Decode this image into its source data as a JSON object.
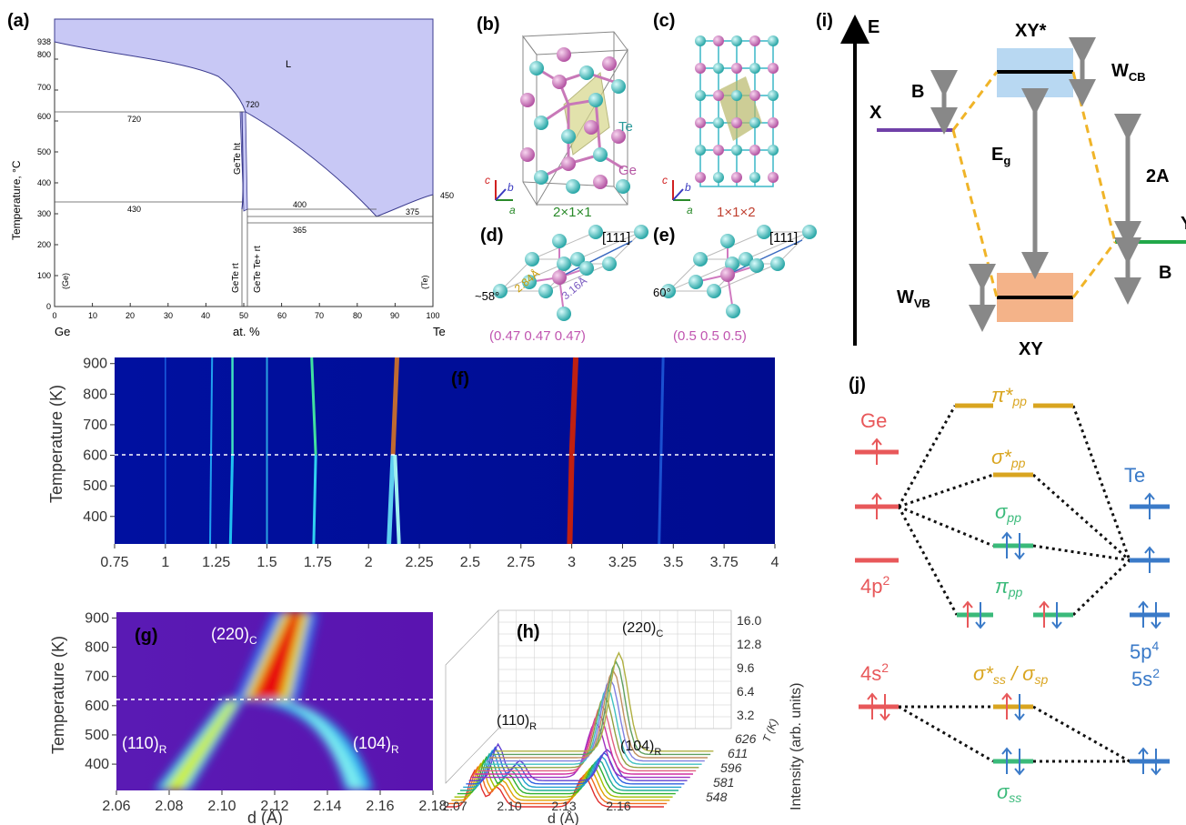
{
  "panels": {
    "a": "(a)",
    "b": "(b)",
    "c": "(c)",
    "d": "(d)",
    "e": "(e)",
    "f": "(f)",
    "g": "(g)",
    "h": "(h)",
    "i": "(i)",
    "j": "(j)"
  },
  "phase_diagram": {
    "ylabel": "Temperature, °C",
    "yticks": [
      "0",
      "100",
      "200",
      "300",
      "400",
      "500",
      "600",
      "700",
      "800"
    ],
    "xticks": [
      "0",
      "10",
      "20",
      "30",
      "40",
      "50",
      "60",
      "70",
      "80",
      "90",
      "100"
    ],
    "x_left": "Ge",
    "x_mid": "at. %",
    "x_right": "Te",
    "v938": "938",
    "v720a": "720",
    "v720b": "720",
    "v430": "430",
    "v400": "400",
    "v375": "375",
    "v365": "365",
    "v450": "450",
    "region_L": "L",
    "ge_side": "(Ge)",
    "te_side": "(Te)",
    "gete_ht": "GeTe ht",
    "gete_rt": "GeTe rt",
    "gete_te_rt": "GeTe Te+ rt"
  },
  "crystal": {
    "te": "Te",
    "ge": "Ge",
    "axis_a": "a",
    "axis_b": "b",
    "axis_c": "c",
    "cell_b": "2×1×1",
    "cell_c": "1×1×2",
    "dir": "[111]",
    "bond1": "2.84Å",
    "bond2": "3.16Å",
    "angle_d": "~58°",
    "angle_e": "60°",
    "coord_d": "(0.47 0.47 0.47)",
    "coord_e": "(0.5 0.5 0.5)"
  },
  "energy_diagram": {
    "E": "E",
    "X": "X",
    "Y": "Y",
    "XYs": "XY*",
    "XY": "XY",
    "B1": "B",
    "B2": "B",
    "Eg": "E",
    "Eg_sub": "g",
    "WCB": "W",
    "WCB_sub": "CB",
    "WVB": "W",
    "WVB_sub": "VB",
    "twoA": "2A"
  },
  "mo": {
    "ge": "Ge",
    "te": "Te",
    "pi_star": "π*",
    "pi_star_sub": "pp",
    "sigma_star": "σ*",
    "sigma_star_sub": "pp",
    "sigma_pp": "σ",
    "sigma_pp_sub": "pp",
    "pi_pp": "π",
    "pi_pp_sub": "pp",
    "ge4p": "4p",
    "ge4p_sup": "2",
    "te5p": "5p",
    "te5p_sup": "4",
    "ge4s": "4s",
    "ge4s_sup": "2",
    "te5s": "5s",
    "te5s_sup": "2",
    "ss_star": "σ*",
    "ss_star_sub": "ss",
    "ss_sep": " / σ",
    "sp_sub": "sp",
    "sigma_ss": "σ",
    "sigma_ss_sub": "ss"
  },
  "heatmap_f": {
    "ylabel": "Temperature (K)",
    "yticks": [
      "400",
      "500",
      "600",
      "700",
      "800",
      "900"
    ],
    "xticks": [
      "0.75",
      "1",
      "1.25",
      "1.5",
      "1.75",
      "2",
      "2.25",
      "2.5",
      "2.75",
      "3",
      "3.25",
      "3.5",
      "3.75",
      "4"
    ]
  },
  "heatmap_g": {
    "ylabel": "Temperature (K)",
    "xlabel": "d (Å)",
    "yticks": [
      "400",
      "500",
      "600",
      "700",
      "800",
      "900"
    ],
    "xticks": [
      "2.06",
      "2.08",
      "2.10",
      "2.12",
      "2.14",
      "2.16",
      "2.18"
    ],
    "p220": "(220)",
    "p220_sub": "C",
    "p110": "(110)",
    "p110_sub": "R",
    "p104": "(104)",
    "p104_sub": "R"
  },
  "waterfall_h": {
    "zlabel": "Intensity (arb. units)",
    "xlabel": "d (Å)",
    "zticks": [
      "3.2",
      "6.4",
      "9.6",
      "12.8",
      "16.0"
    ],
    "xticks": [
      "2.07",
      "2.10",
      "2.13",
      "2.16"
    ],
    "tticks": [
      "548",
      "581",
      "596",
      "611",
      "626"
    ],
    "taxis": "T (K)",
    "p220": "(220)",
    "p220_sub": "C",
    "p110": "(110)",
    "p110_sub": "R",
    "p104": "(104)",
    "p104_sub": "R"
  }
}
